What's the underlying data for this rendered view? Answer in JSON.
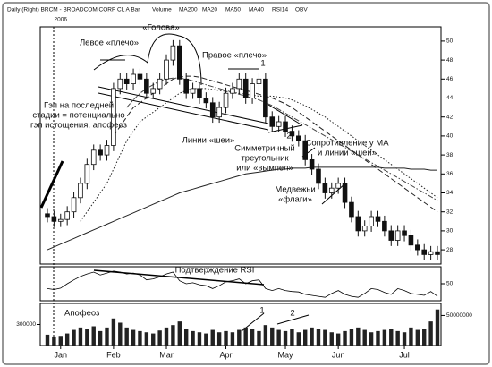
{
  "chart_data": {
    "type": "candlestick",
    "title": "Daily (Right) BRCM - BROADCOM CORP CL A Bar",
    "year_label": "2006",
    "categories": [
      null,
      null,
      "Jan",
      null,
      null,
      null,
      null,
      null,
      null,
      null,
      "Feb",
      null,
      null,
      null,
      null,
      null,
      null,
      null,
      "Mar",
      null,
      null,
      null,
      null,
      null,
      null,
      null,
      null,
      "Apr",
      null,
      null,
      null,
      null,
      null,
      null,
      null,
      null,
      "May",
      null,
      null,
      null,
      null,
      null,
      null,
      null,
      "Jun",
      null,
      null,
      null,
      null,
      null,
      null,
      null,
      null,
      null,
      "Jul",
      null,
      null,
      null,
      null,
      null
    ],
    "open": [
      31.8,
      31.5,
      31,
      31.2,
      32,
      33.5,
      35,
      37,
      38.5,
      38,
      39,
      45,
      46,
      45.5,
      46.5,
      46,
      44.5,
      45,
      46,
      48,
      49.5,
      46,
      44.5,
      45,
      44,
      43.5,
      42,
      43,
      44.5,
      45,
      46,
      44,
      45.5,
      46,
      42,
      41,
      41.5,
      40.5,
      40,
      39.5,
      37.5,
      36.5,
      35,
      34,
      34.5,
      35,
      33,
      31.5,
      30,
      30.5,
      31.5,
      31,
      30,
      29,
      30,
      29.5,
      28.5,
      28,
      27.5,
      27.8
    ],
    "high": [
      32.4,
      32.1,
      31.8,
      32.6,
      34.1,
      35.6,
      37.6,
      39.1,
      39.1,
      39.6,
      45.6,
      46.6,
      46.6,
      47.1,
      47.1,
      46.6,
      45.6,
      46.6,
      48.6,
      50.1,
      50.1,
      46.6,
      45.6,
      45.6,
      44.6,
      44.1,
      43.6,
      45.1,
      45.6,
      46.6,
      46.6,
      46.1,
      46.6,
      46.6,
      42.6,
      42.1,
      42.1,
      41.1,
      40.6,
      40.1,
      38.1,
      37.1,
      35.6,
      35.1,
      35.6,
      35.6,
      33.6,
      32.1,
      31.1,
      32.1,
      32.1,
      31.6,
      30.6,
      30.6,
      30.6,
      30.1,
      29.1,
      28.6,
      28.4,
      28.4
    ],
    "low": [
      30.9,
      30.4,
      30.4,
      30.6,
      31.4,
      32.9,
      34.4,
      36.4,
      37.4,
      37.4,
      38.4,
      44.4,
      44.9,
      44.9,
      45.4,
      43.9,
      43.9,
      44.4,
      45.4,
      47.4,
      45.4,
      43.9,
      43.9,
      43.4,
      42.9,
      41.4,
      41.4,
      42.4,
      43.9,
      44.4,
      43.4,
      43.4,
      44.9,
      41.4,
      40.4,
      40.4,
      39.9,
      39.4,
      38.9,
      36.9,
      35.9,
      34.4,
      33.4,
      33.4,
      33.9,
      32.4,
      30.9,
      29.4,
      29.4,
      29.9,
      30.4,
      29.4,
      28.4,
      28.4,
      28.9,
      27.9,
      27.4,
      26.9,
      26.9,
      26.9
    ],
    "close": [
      31.5,
      31,
      31.2,
      32,
      33.5,
      35,
      37,
      38.5,
      38,
      39,
      45,
      46,
      45.5,
      46.5,
      46,
      44.5,
      45,
      46,
      48,
      49.5,
      46,
      44.5,
      45,
      44,
      43.5,
      42,
      43,
      44.5,
      45,
      46,
      44,
      45.5,
      46,
      42,
      41,
      41.5,
      40.5,
      40,
      39.5,
      37.5,
      36.5,
      35,
      34,
      34.5,
      35,
      33,
      31.5,
      30,
      30.5,
      31.5,
      31,
      30,
      29,
      30,
      29.5,
      28.5,
      28,
      27.5,
      27.8,
      27.5
    ],
    "color": "#111111",
    "ylim": [
      26.5,
      51.5
    ],
    "yticks": [
      28,
      30,
      32,
      34,
      36,
      38,
      40,
      42,
      44,
      46,
      48,
      50
    ],
    "series": [
      {
        "name": "MA200",
        "color": "#222222",
        "dash": "none",
        "values": [
          28,
          28.3,
          28.6,
          28.9,
          29.2,
          29.5,
          29.8,
          30.1,
          30.4,
          30.7,
          31,
          31.3,
          31.6,
          31.9,
          32.2,
          32.5,
          32.8,
          33.1,
          33.4,
          33.7,
          34,
          34.2,
          34.4,
          34.6,
          34.8,
          35,
          35.2,
          35.4,
          35.6,
          35.8,
          36,
          36.1,
          36.2,
          36.3,
          36.4,
          36.5,
          36.5,
          36.6,
          36.6,
          36.6,
          36.7,
          36.7,
          36.7,
          36.7,
          36.7,
          36.7,
          36.7,
          36.7,
          36.7,
          36.7,
          36.7,
          36.6,
          36.6,
          36.6,
          36.6,
          36.5,
          36.5,
          36.5,
          36.4,
          36.4
        ]
      },
      {
        "name": "MA20",
        "color": "#222222",
        "dash": "1.5 2",
        "values": [
          null,
          null,
          null,
          null,
          null,
          31,
          32,
          33,
          34,
          35,
          36.5,
          38,
          39.5,
          40.5,
          41.5,
          42,
          42.5,
          43,
          43.5,
          44,
          44.5,
          44.8,
          45,
          45,
          45,
          44.9,
          44.8,
          44.7,
          44.6,
          44.5,
          44.4,
          44.3,
          44.2,
          44.2,
          44.2,
          44.1,
          44,
          43.8,
          43.5,
          43.2,
          42.8,
          42.4,
          42,
          41.5,
          41,
          40.5,
          40,
          39.5,
          39,
          38.5,
          38,
          37.5,
          37,
          36.5,
          36,
          35.5,
          35,
          34.5,
          34,
          33.5
        ]
      },
      {
        "name": "MA50",
        "color": "#222222",
        "dash": "6 3",
        "values": [
          null,
          null,
          null,
          null,
          null,
          null,
          null,
          null,
          null,
          null,
          40,
          41,
          42,
          43,
          43.5,
          44,
          44.5,
          45,
          45.5,
          46,
          46.2,
          46.3,
          46.3,
          46.2,
          46,
          45.8,
          45.6,
          45.4,
          45.2,
          45,
          44.8,
          44.6,
          44.4,
          44.2,
          44,
          43.7,
          43.4,
          43,
          42.5,
          42,
          41.5,
          41,
          40.5,
          40,
          39.5,
          39,
          38.5,
          38,
          37.5,
          37,
          36.5,
          36,
          35.5,
          35,
          34.5,
          34,
          33.5,
          33,
          32.5,
          32
        ]
      },
      {
        "name": "MA40",
        "color": "#444444",
        "dash": "6 2 1.5 2",
        "values": [
          null,
          null,
          null,
          null,
          null,
          null,
          null,
          null,
          null,
          null,
          null,
          null,
          43,
          43.8,
          44.5,
          45,
          45.4,
          45.8,
          46,
          46.1,
          46.1,
          46,
          45.8,
          45.6,
          45.4,
          45.2,
          45,
          44.8,
          44.6,
          44.4,
          44.2,
          44,
          43.8,
          43.5,
          43.2,
          42.8,
          42.4,
          42,
          41.6,
          41.2,
          40.8,
          40.4,
          40,
          39.6,
          39.2,
          38.8,
          38.4,
          38,
          37.6,
          37.2,
          36.8,
          36.4,
          36,
          35.6,
          35.2,
          34.8,
          34.4,
          34,
          33.6,
          33.2
        ]
      }
    ],
    "rsi": {
      "name": "RSI14",
      "ylim": [
        15,
        85
      ],
      "yticks": [
        50
      ],
      "values": [
        40,
        38,
        41,
        50,
        58,
        65,
        70,
        74,
        68,
        72,
        76,
        74,
        70,
        72,
        68,
        58,
        60,
        64,
        70,
        74,
        56,
        50,
        52,
        48,
        46,
        40,
        46,
        54,
        56,
        60,
        50,
        56,
        58,
        40,
        36,
        40,
        36,
        34,
        33,
        28,
        26,
        24,
        22,
        30,
        36,
        28,
        24,
        22,
        30,
        40,
        38,
        32,
        28,
        40,
        36,
        30,
        28,
        26,
        34,
        24
      ]
    },
    "volume": {
      "name": "Volume",
      "ylim": [
        0,
        70000000
      ],
      "yticks": [
        50000000
      ],
      "values": [
        18000000,
        15000000,
        16000000,
        20000000,
        26000000,
        30000000,
        28000000,
        32000000,
        24000000,
        30000000,
        45000000,
        38000000,
        30000000,
        26000000,
        24000000,
        22000000,
        20000000,
        25000000,
        30000000,
        34000000,
        40000000,
        28000000,
        24000000,
        22000000,
        20000000,
        26000000,
        22000000,
        24000000,
        22000000,
        26000000,
        30000000,
        28000000,
        24000000,
        34000000,
        30000000,
        26000000,
        24000000,
        28000000,
        22000000,
        26000000,
        30000000,
        28000000,
        26000000,
        22000000,
        20000000,
        24000000,
        28000000,
        30000000,
        26000000,
        22000000,
        24000000,
        26000000,
        28000000,
        24000000,
        22000000,
        30000000,
        26000000,
        28000000,
        40000000,
        60000000
      ]
    },
    "obv": {
      "name": "OBV",
      "y2lim": [
        0,
        600000
      ],
      "y2ticks": [
        300000
      ]
    },
    "annotations": [
      {
        "lines": [
          "Левое «плечо»"
        ]
      },
      {
        "lines": [
          "«Голова»"
        ]
      },
      {
        "lines": [
          "Правое «плечо»"
        ]
      },
      {
        "lines": [
          "Гэп на последней",
          "стадии = потенциально",
          "гэп истощения, апофеоз"
        ]
      },
      {
        "lines": [
          "Линии «шеи»"
        ]
      },
      {
        "lines": [
          "Симметричный",
          "треугольник",
          "или «вымпел»"
        ]
      },
      {
        "lines": [
          "Сопротивление у МА",
          "и линии «шеи»"
        ]
      },
      {
        "lines": [
          "Медвежьи",
          "«флаги»"
        ]
      },
      {
        "lines": [
          "Подтверждение RSI"
        ]
      },
      {
        "lines": [
          "Апофеоз"
        ]
      },
      {
        "lines": [
          "1"
        ]
      },
      {
        "lines": [
          "2"
        ]
      },
      {
        "lines": [
          "1"
        ]
      },
      {
        "lines": [
          "2"
        ]
      }
    ]
  }
}
